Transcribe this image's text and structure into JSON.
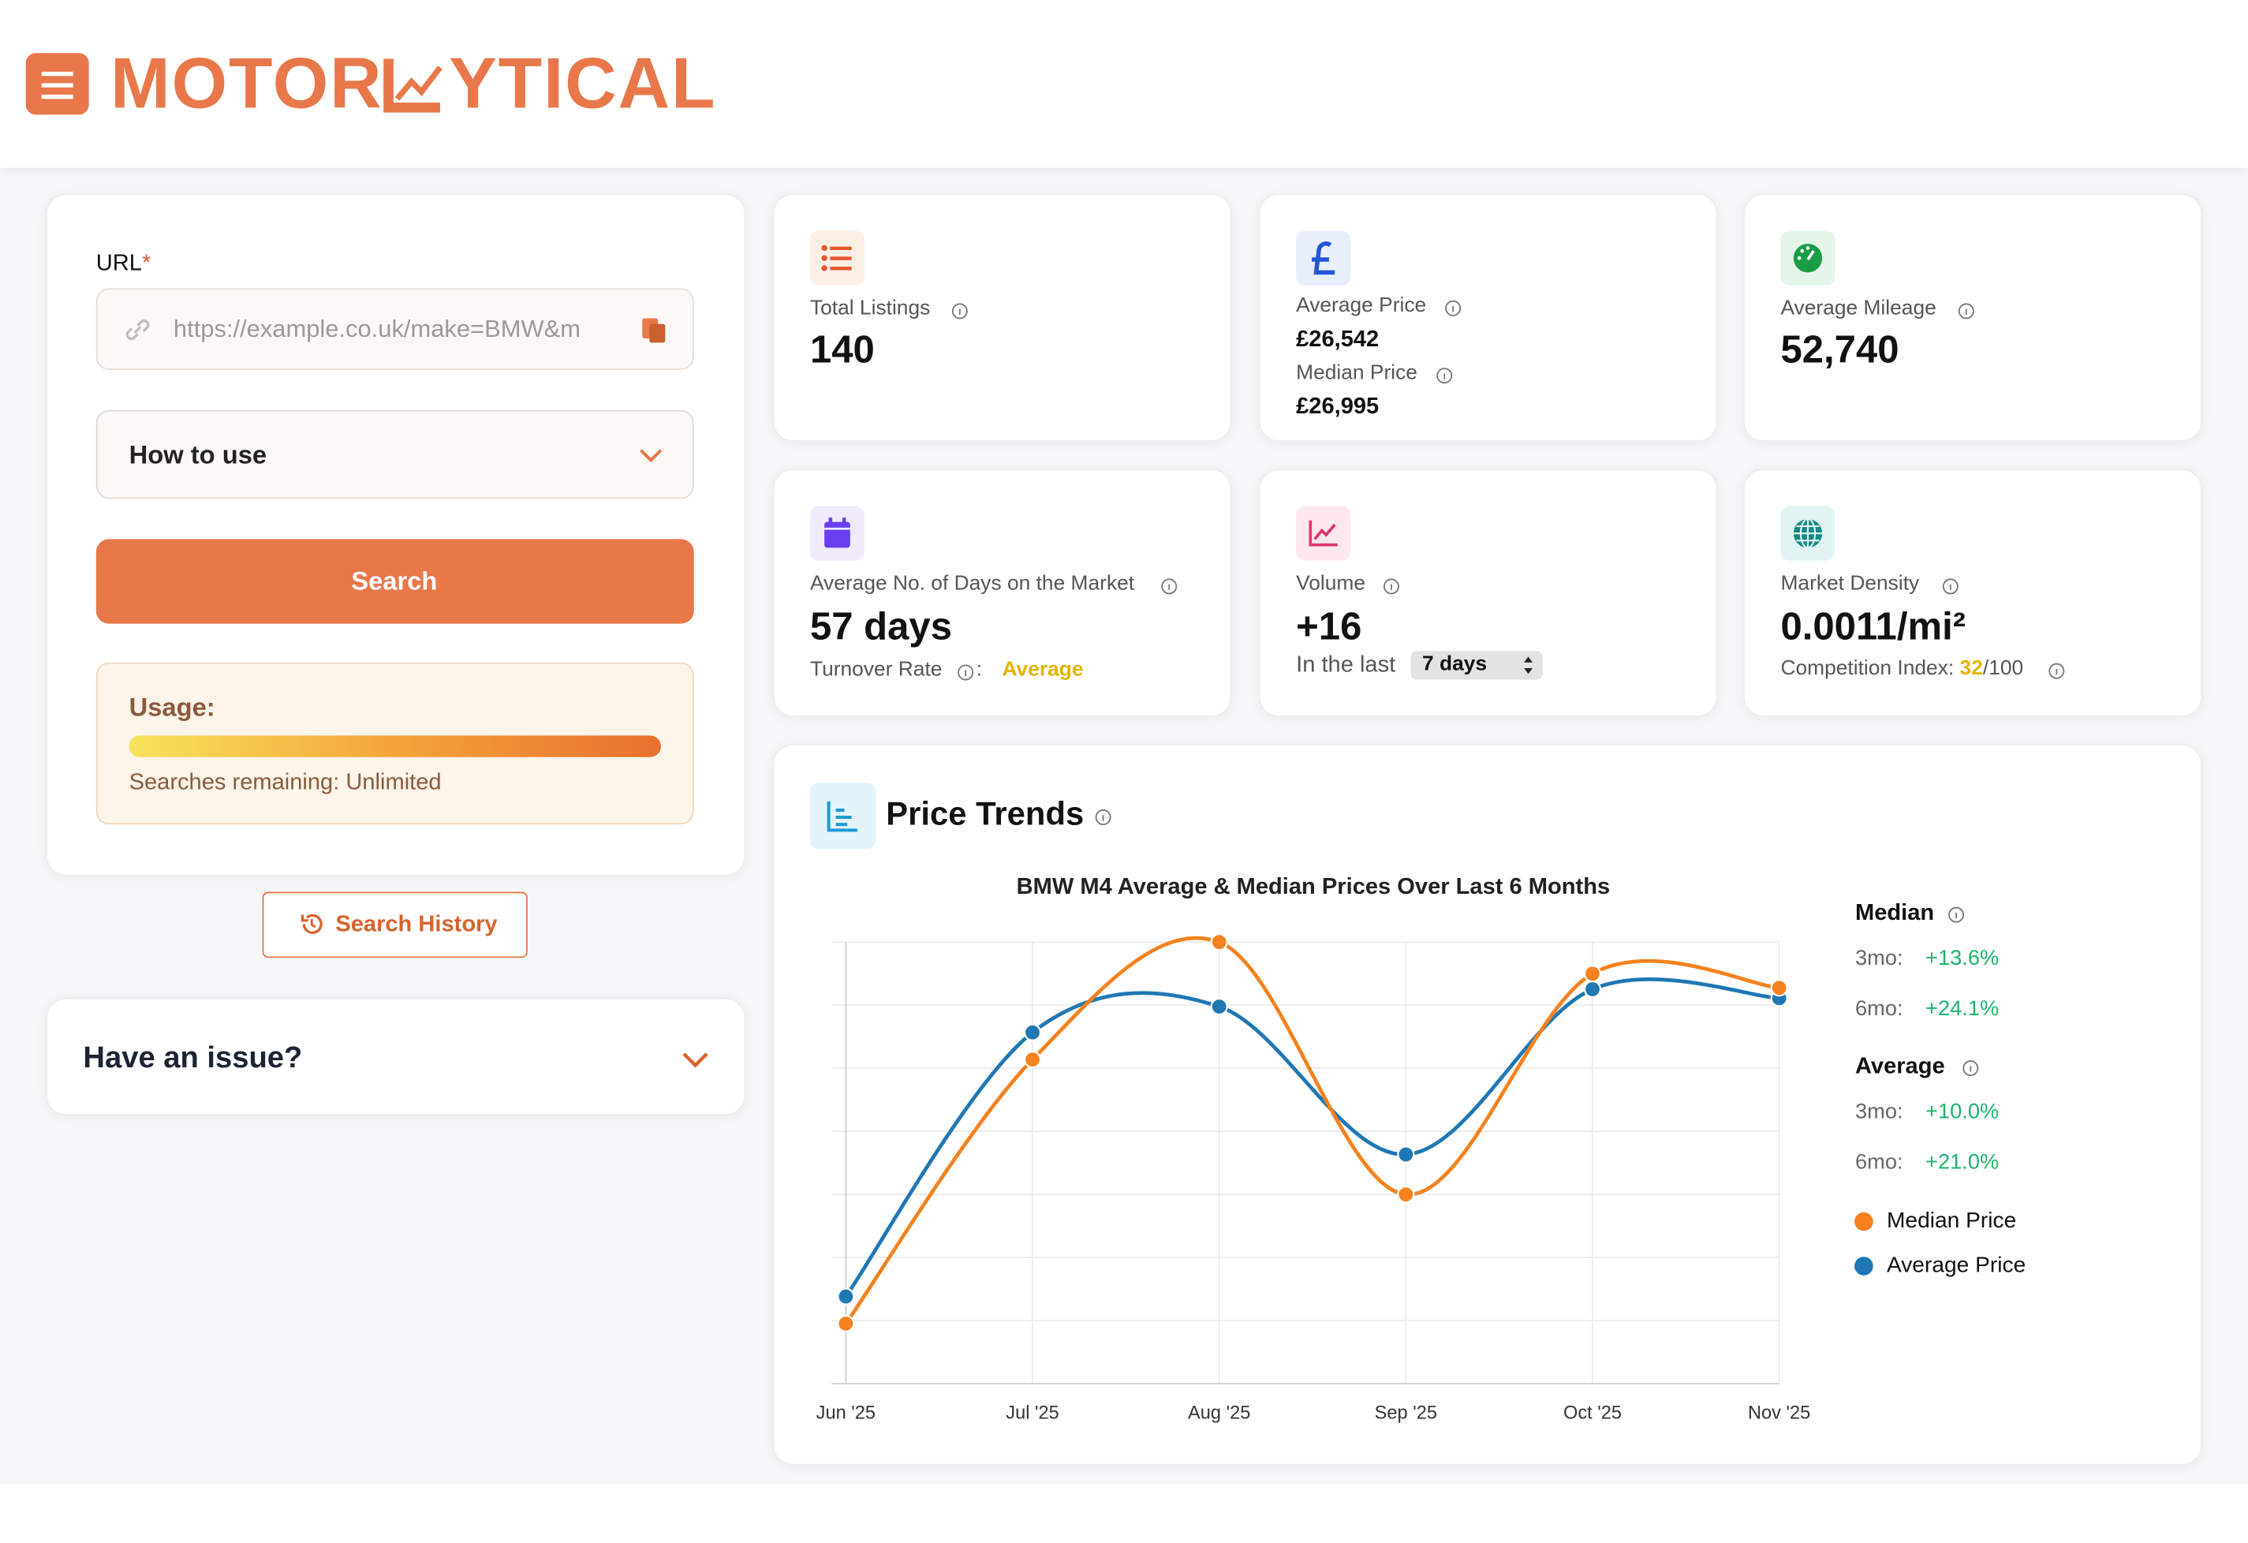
{
  "header": {
    "logo_left": "MOTOR",
    "logo_right": "YTICAL"
  },
  "sidebar": {
    "url_label": "URL",
    "required_mark": "*",
    "url_placeholder": "https://example.co.uk/make=BMW&m",
    "how_to_use": "How to use",
    "search_button": "Search",
    "usage_title": "Usage:",
    "usage_text": "Searches remaining: Unlimited",
    "history_button": "Search History",
    "issue_title": "Have an issue?"
  },
  "stats": {
    "total_listings": {
      "label": "Total Listings",
      "value": "140"
    },
    "price": {
      "average_label": "Average Price",
      "average_value": "£26,542",
      "median_label": "Median Price",
      "median_value": "£26,995"
    },
    "mileage": {
      "label": "Average Mileage",
      "value": "52,740"
    },
    "days": {
      "label": "Average No. of Days on the Market",
      "value": "57 days",
      "turnover_label": "Turnover Rate",
      "turnover_colon": ":",
      "turnover_value": "Average"
    },
    "volume": {
      "label": "Volume",
      "value": "+16",
      "period_label": "In the last",
      "period_value": "7 days"
    },
    "density": {
      "label": "Market Density",
      "value": "0.0011/mi²",
      "competition_label": "Competition Index:",
      "competition_value": "32",
      "competition_max": "/100"
    }
  },
  "price_trends": {
    "title": "Price Trends",
    "changes": [
      {
        "name": "Median",
        "rows": [
          {
            "label": "3mo:",
            "value": "+13.6%"
          },
          {
            "label": "6mo:",
            "value": "+24.1%"
          }
        ]
      },
      {
        "name": "Average",
        "rows": [
          {
            "label": "3mo:",
            "value": "+10.0%"
          },
          {
            "label": "6mo:",
            "value": "+21.0%"
          }
        ]
      }
    ]
  },
  "chart_data": {
    "type": "line",
    "title": "BMW M4 Average & Median Prices Over Last 6 Months",
    "categories": [
      "Jun '25",
      "Jul '25",
      "Aug '25",
      "Sep '25",
      "Oct '25",
      "Nov '25"
    ],
    "series": [
      {
        "name": "Median Price",
        "color": "#f5821f",
        "values": [
          21750,
          25840,
          27660,
          23750,
          27170,
          26950
        ]
      },
      {
        "name": "Average Price",
        "color": "#1f77b4",
        "values": [
          22170,
          26260,
          26660,
          24370,
          26930,
          26790
        ]
      }
    ],
    "ylim": [
      20820,
      27660
    ],
    "grid": true
  }
}
